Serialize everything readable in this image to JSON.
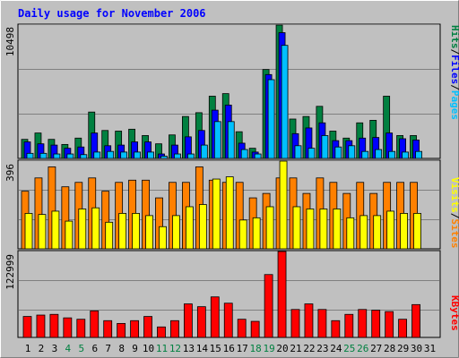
{
  "chart_data": [
    {
      "type": "bar",
      "title": "Daily usage for November 2006",
      "ytick_max_label": "10498",
      "ylim": [
        0,
        10498
      ],
      "legend_placement": "right",
      "legend": [
        {
          "name": "Pages",
          "color": "#00c0ff"
        },
        {
          "name": "Files",
          "color": "#0000ff"
        },
        {
          "name": "Hits",
          "color": "#008040"
        }
      ],
      "categories": [
        "1",
        "2",
        "3",
        "4",
        "5",
        "6",
        "7",
        "8",
        "9",
        "10",
        "11",
        "12",
        "13",
        "14",
        "15",
        "16",
        "17",
        "18",
        "19",
        "20",
        "21",
        "22",
        "23",
        "24",
        "25",
        "26",
        "27",
        "28",
        "29",
        "30",
        "31"
      ],
      "weekend_days": [
        4,
        5,
        11,
        12,
        18,
        19,
        25,
        26
      ],
      "series": [
        {
          "name": "Hits",
          "values": [
            1500,
            2000,
            1500,
            1100,
            1600,
            3650,
            2200,
            2150,
            2300,
            1800,
            1150,
            1850,
            3300,
            3600,
            4900,
            5100,
            2100,
            800,
            7000,
            10498,
            3100,
            3300,
            4100,
            2150,
            1600,
            2800,
            3000,
            4900,
            1800,
            1800,
            null
          ]
        },
        {
          "name": "Files",
          "values": [
            1300,
            1150,
            1050,
            800,
            900,
            2000,
            1000,
            1050,
            1300,
            1300,
            350,
            1050,
            1700,
            2200,
            3800,
            4200,
            1200,
            500,
            6600,
            9900,
            1950,
            2400,
            2800,
            1400,
            1400,
            1600,
            1650,
            2000,
            1550,
            1450,
            null
          ]
        },
        {
          "name": "Pages",
          "values": [
            400,
            400,
            350,
            350,
            300,
            500,
            550,
            500,
            500,
            500,
            180,
            350,
            350,
            1050,
            2900,
            2900,
            700,
            350,
            6200,
            8900,
            1000,
            800,
            1800,
            900,
            1000,
            550,
            700,
            550,
            500,
            550,
            null
          ]
        }
      ]
    },
    {
      "type": "bar",
      "ytick_max_label": "396",
      "ylim": [
        0,
        396
      ],
      "legend_placement": "right",
      "legend": [
        {
          "name": "Sites",
          "color": "#ff8000"
        },
        {
          "name": "Visits",
          "color": "#ffff00"
        }
      ],
      "categories": [
        "1",
        "2",
        "3",
        "4",
        "5",
        "6",
        "7",
        "8",
        "9",
        "10",
        "11",
        "12",
        "13",
        "14",
        "15",
        "16",
        "17",
        "18",
        "19",
        "20",
        "21",
        "22",
        "23",
        "24",
        "25",
        "26",
        "27",
        "28",
        "29",
        "30",
        "31"
      ],
      "series": [
        {
          "name": "Sites",
          "values": [
            260,
            320,
            370,
            280,
            300,
            320,
            260,
            300,
            310,
            310,
            230,
            300,
            300,
            370,
            310,
            300,
            300,
            230,
            250,
            320,
            320,
            250,
            320,
            300,
            250,
            300,
            250,
            300,
            300,
            300,
            null
          ]
        },
        {
          "name": "Visits",
          "values": [
            160,
            155,
            170,
            125,
            180,
            185,
            120,
            160,
            160,
            150,
            100,
            150,
            190,
            200,
            315,
            325,
            130,
            140,
            190,
            396,
            190,
            180,
            180,
            180,
            140,
            150,
            150,
            170,
            160,
            160,
            null
          ]
        }
      ]
    },
    {
      "type": "bar",
      "ytick_max_label": "122999",
      "ylim": [
        0,
        122999
      ],
      "legend_placement": "right",
      "legend": [
        {
          "name": "KBytes",
          "color": "#ff0000"
        }
      ],
      "categories": [
        "1",
        "2",
        "3",
        "4",
        "5",
        "6",
        "7",
        "8",
        "9",
        "10",
        "11",
        "12",
        "13",
        "14",
        "15",
        "16",
        "17",
        "18",
        "19",
        "20",
        "21",
        "22",
        "23",
        "24",
        "25",
        "26",
        "27",
        "28",
        "29",
        "30",
        "31"
      ],
      "series": [
        {
          "name": "KBytes",
          "values": [
            30000,
            32000,
            33000,
            28000,
            26000,
            38000,
            24000,
            20000,
            24000,
            30000,
            15000,
            24000,
            48000,
            44000,
            58000,
            49000,
            26000,
            23000,
            90000,
            122999,
            40000,
            48000,
            40000,
            24000,
            33000,
            40000,
            39000,
            37000,
            26000,
            47000,
            null
          ]
        }
      ]
    }
  ]
}
